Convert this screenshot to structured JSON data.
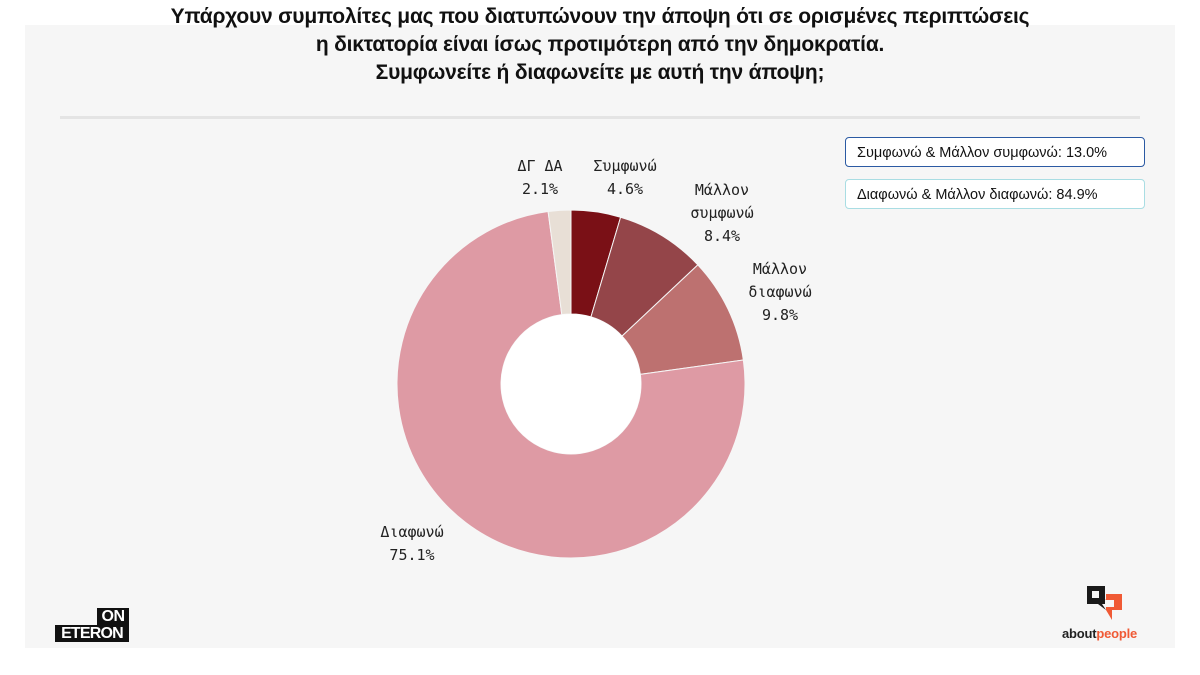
{
  "title": {
    "line1": "Υπάρχουν συμπολίτες μας που διατυπώνουν την άποψη ότι σε ορισμένες περιπτώσεις",
    "line2": "η δικτατορία είναι ίσως προτιμότερη από την δημοκρατία.",
    "line3": "Συμφωνείτε ή διαφωνείτε με αυτή την άποψη;"
  },
  "labels": {
    "dg_da": {
      "name": "ΔΓ ΔΑ",
      "value": "2.1%"
    },
    "symfono": {
      "name": "Συμφωνώ",
      "value": "4.6%"
    },
    "mallon_symfono": {
      "name1": "Μάλλον",
      "name2": "συμφωνώ",
      "value": "8.4%"
    },
    "mallon_diafono": {
      "name1": "Μάλλον",
      "name2": "διαφωνώ",
      "value": "9.8%"
    },
    "diafono": {
      "name": "Διαφωνώ",
      "value": "75.1%"
    }
  },
  "summary_boxes": {
    "agree": "Συμφωνώ & Μάλλον συμφωνώ: 13.0%",
    "disagree": "Διαφωνώ & Μάλλον διαφωνώ: 84.9%"
  },
  "logos": {
    "left_top": "ON",
    "left_bottom": "ETERON",
    "right_part1": "about",
    "right_part2": "people"
  },
  "colors": {
    "symfono": "#7a1016",
    "mallon_symfono": "#944549",
    "mallon_diafono": "#bd7170",
    "diafono": "#de9aa4",
    "dg_da": "#e8dfd6",
    "background": "#f6f6f6",
    "agree_box_border": "#2b5aa3",
    "disagree_box_border": "#a9dde3",
    "brand_orange": "#f05a35"
  },
  "chart_data": {
    "type": "pie",
    "subtype": "donut",
    "title": "Υπάρχουν συμπολίτες μας που διατυπώνουν την άποψη ότι σε ορισμένες περιπτώσεις η δικτατορία είναι ίσως προτιμότερη από την δημοκρατία. Συμφωνείτε ή διαφωνείτε με αυτή την άποψη;",
    "categories": [
      "Συμφωνώ",
      "Μάλλον συμφωνώ",
      "Μάλλον διαφωνώ",
      "Διαφωνώ",
      "ΔΓ ΔΑ"
    ],
    "values": [
      4.6,
      8.4,
      9.8,
      75.1,
      2.1
    ],
    "unit": "%",
    "start_angle": "12 o'clock, clockwise",
    "annotations": [
      "Συμφωνώ & Μάλλον συμφωνώ: 13.0%",
      "Διαφωνώ & Μάλλον διαφωνώ: 84.9%"
    ],
    "legend": "none (direct labels)"
  }
}
